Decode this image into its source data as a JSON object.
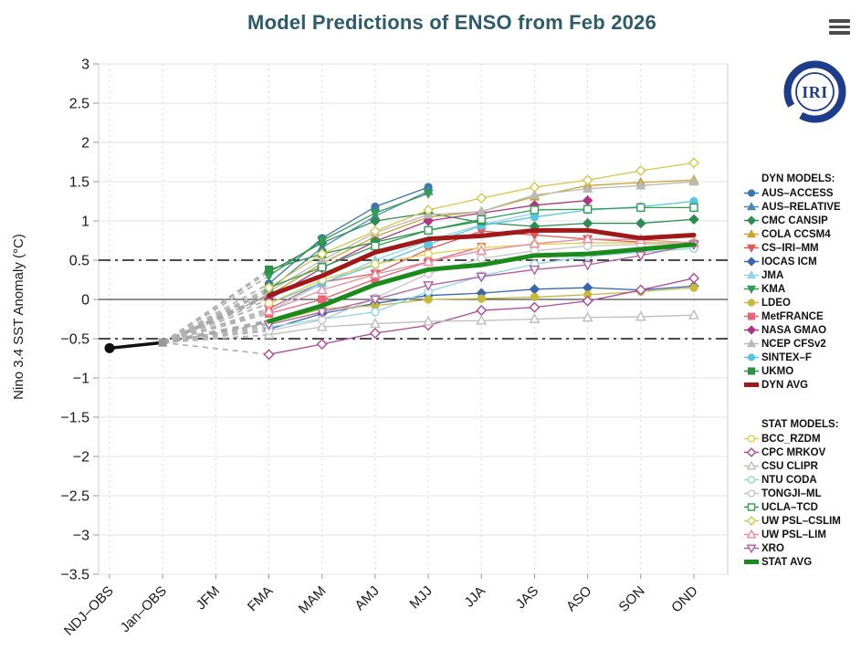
{
  "title": "Model Predictions of ENSO from Feb 2026",
  "logo": {
    "text": "IRI"
  },
  "legend": {
    "dyn_header": "DYN MODELS:",
    "stat_header": "STAT MODELS:"
  },
  "colors": {
    "title_text": "#2d5c68",
    "axis_text": "#1a1a1a",
    "obs_line": "#111111",
    "obs_last_marker": "#999999",
    "fan_line": "#b3b3b3",
    "grid_horizontal": "#e3e3e3",
    "grid_vertical": "#d9d9d9",
    "frame": "#cccccc",
    "logo_navy": "#1d3c8c",
    "menu_bars": "#4a4a4a",
    "dyn_avg": "#a01818",
    "stat_avg": "#1a8a1a"
  },
  "chart_data": {
    "type": "line",
    "title": "Model Predictions of ENSO from Feb 2026",
    "xlabel": "",
    "ylabel": "Nino 3.4 SST Anomaly (°C)",
    "ylim": [
      -3.5,
      3.0
    ],
    "ytick_step": 0.5,
    "ytick_values": [
      3,
      2.5,
      2,
      1.5,
      1,
      0.5,
      0,
      -0.5,
      -1,
      -1.5,
      -2,
      -2.5,
      -3,
      -3.5
    ],
    "ytick_labels": [
      "3",
      "2.5",
      "2",
      "1.5",
      "1",
      "0.5",
      "0",
      "−0.5",
      "−1",
      "−1.5",
      "−2",
      "−2.5",
      "−3",
      "−3.5"
    ],
    "categories": [
      "NDJ–OBS",
      "Jan–OBS",
      "JFM",
      "FMA",
      "MAM",
      "AMJ",
      "MJJ",
      "JJA",
      "JAS",
      "ASO",
      "SON",
      "OND"
    ],
    "grid": true,
    "legend_position": "right",
    "reference_lines": {
      "zero": 0,
      "upper_threshold": 0.5,
      "lower_threshold": -0.5
    },
    "observations": {
      "name": "OBS",
      "x_indices": [
        0,
        1
      ],
      "values": [
        -0.62,
        -0.55
      ]
    },
    "forecast_start_index": 3,
    "series": [
      {
        "name": "AUS–ACCESS",
        "group": "dyn",
        "color": "#3c76ae",
        "marker": "circle",
        "open": false,
        "values": [
          0.2,
          0.78,
          1.18,
          1.43
        ]
      },
      {
        "name": "AUS–RELATIVE",
        "group": "dyn",
        "color": "#4f86b8",
        "marker": "triangle-up",
        "open": false,
        "values": [
          0.12,
          0.66,
          1.06,
          1.38
        ]
      },
      {
        "name": "CMC CANSIP",
        "group": "dyn",
        "color": "#2e8b50",
        "marker": "diamond",
        "open": false,
        "values": [
          0.35,
          0.72,
          1.0,
          1.1,
          0.98,
          0.93,
          0.97,
          0.97,
          1.02
        ]
      },
      {
        "name": "COLA CCSM4",
        "group": "dyn",
        "color": "#c9a22c",
        "marker": "triangle-up",
        "open": false,
        "values": [
          0.05,
          0.46,
          0.8,
          1.05,
          1.12,
          1.31,
          1.45,
          1.49,
          1.52
        ]
      },
      {
        "name": "CS–IRI–MM",
        "group": "dyn",
        "color": "#e05a5a",
        "marker": "triangle-down",
        "open": false,
        "values": [
          -0.12,
          0.22,
          0.33,
          0.64,
          0.87,
          0.82,
          0.77,
          0.73,
          0.7
        ]
      },
      {
        "name": "IOCAS ICM",
        "group": "dyn",
        "color": "#3a66b0",
        "marker": "diamond",
        "open": false,
        "values": [
          -0.38,
          -0.18,
          -0.05,
          0.05,
          0.08,
          0.13,
          0.15,
          0.12,
          0.17
        ]
      },
      {
        "name": "JMA",
        "group": "dyn",
        "color": "#8fd4ea",
        "marker": "triangle-up",
        "open": false,
        "values": [
          -0.15,
          0.2,
          0.5,
          0.75,
          0.95,
          1.1
        ]
      },
      {
        "name": "KMA",
        "group": "dyn",
        "color": "#2f9e50",
        "marker": "triangle-down",
        "open": false,
        "values": [
          0.3,
          0.75,
          1.1,
          1.35
        ]
      },
      {
        "name": "LDEO",
        "group": "dyn",
        "color": "#c5b93a",
        "marker": "circle",
        "open": false,
        "values": [
          -0.3,
          -0.12,
          -0.08,
          0.0,
          0.01,
          0.03,
          0.06,
          0.1,
          0.15
        ]
      },
      {
        "name": "MetFRANCE",
        "group": "dyn",
        "color": "#ec6478",
        "marker": "square",
        "open": false,
        "values": [
          -0.18,
          0.0,
          0.26,
          0.48,
          0.67
        ]
      },
      {
        "name": "NASA GMAO",
        "group": "dyn",
        "color": "#b03484",
        "marker": "diamond",
        "open": false,
        "values": [
          0.0,
          0.4,
          0.74,
          1.0,
          1.1,
          1.2,
          1.26
        ]
      },
      {
        "name": "NCEP CFSv2",
        "group": "dyn",
        "color": "#b9b9b9",
        "marker": "triangle-up",
        "open": false,
        "values": [
          0.1,
          0.5,
          0.85,
          1.08,
          1.12,
          1.33,
          1.41,
          1.45,
          1.5
        ]
      },
      {
        "name": "SINTEX–F",
        "group": "dyn",
        "color": "#56c6e4",
        "marker": "circle",
        "open": false,
        "values": [
          -0.05,
          0.21,
          0.44,
          0.7,
          0.94,
          1.05,
          1.14,
          1.18,
          1.25
        ]
      },
      {
        "name": "UKMO",
        "group": "dyn",
        "color": "#2c9247",
        "marker": "square",
        "open": false,
        "values": [
          0.38,
          0.58,
          0.73,
          0.88,
          1.0
        ]
      },
      {
        "name": "DYN AVG",
        "group": "dyn",
        "color": "#a01818",
        "marker": "line",
        "open": false,
        "width": 5,
        "values": [
          0.05,
          0.3,
          0.6,
          0.77,
          0.81,
          0.88,
          0.88,
          0.78,
          0.82
        ]
      },
      {
        "name": "BCC_RZDM",
        "group": "stat",
        "color": "#e0cf4e",
        "marker": "circle",
        "open": true,
        "values": [
          -0.05,
          0.25,
          0.45,
          0.58,
          0.66,
          0.7,
          0.72,
          0.72,
          0.73
        ]
      },
      {
        "name": "CPC MRKOV",
        "group": "stat",
        "color": "#b2479b",
        "marker": "diamond",
        "open": true,
        "values": [
          -0.7,
          -0.57,
          -0.43,
          -0.33,
          -0.14,
          -0.1,
          -0.02,
          0.12,
          0.27
        ]
      },
      {
        "name": "CSU CLIPR",
        "group": "stat",
        "color": "#bdbdbd",
        "marker": "triangle-up",
        "open": true,
        "values": [
          -0.45,
          -0.35,
          -0.31,
          -0.28,
          -0.27,
          -0.25,
          -0.23,
          -0.22,
          -0.2
        ]
      },
      {
        "name": "NTU CODA",
        "group": "stat",
        "color": "#90d6e6",
        "marker": "circle",
        "open": true,
        "values": [
          -0.35,
          -0.25,
          -0.16,
          0.1,
          0.3,
          0.45,
          0.55,
          0.6,
          0.65
        ]
      },
      {
        "name": "TONGJI–ML",
        "group": "stat",
        "color": "#c6c6c6",
        "marker": "circle",
        "open": true,
        "values": [
          -0.4,
          -0.26,
          0.02,
          0.33,
          0.52,
          0.62,
          0.68,
          0.7,
          0.72
        ]
      },
      {
        "name": "UCLA–TCD",
        "group": "stat",
        "color": "#2f9e50",
        "marker": "square",
        "open": true,
        "values": [
          0.15,
          0.41,
          0.68,
          0.88,
          1.02,
          1.14,
          1.15,
          1.17,
          1.17
        ]
      },
      {
        "name": "UW PSL–CSLIM",
        "group": "stat",
        "color": "#d8c64a",
        "marker": "diamond",
        "open": true,
        "values": [
          0.15,
          0.58,
          0.87,
          1.14,
          1.29,
          1.43,
          1.52,
          1.64,
          1.74
        ]
      },
      {
        "name": "UW PSL–LIM",
        "group": "stat",
        "color": "#ee8ba2",
        "marker": "triangle-up",
        "open": true,
        "values": [
          -0.15,
          0.12,
          0.32,
          0.48,
          0.62,
          0.71,
          0.77,
          0.76,
          0.72
        ]
      },
      {
        "name": "XRO",
        "group": "stat",
        "color": "#b35ba8",
        "marker": "triangle-down",
        "open": true,
        "values": [
          -0.32,
          -0.16,
          0.0,
          0.18,
          0.29,
          0.38,
          0.44,
          0.56,
          0.7
        ]
      },
      {
        "name": "STAT AVG",
        "group": "stat",
        "color": "#1a8a1a",
        "marker": "line",
        "open": false,
        "width": 5,
        "values": [
          -0.28,
          -0.08,
          0.19,
          0.38,
          0.44,
          0.56,
          0.58,
          0.64,
          0.7
        ]
      }
    ]
  }
}
